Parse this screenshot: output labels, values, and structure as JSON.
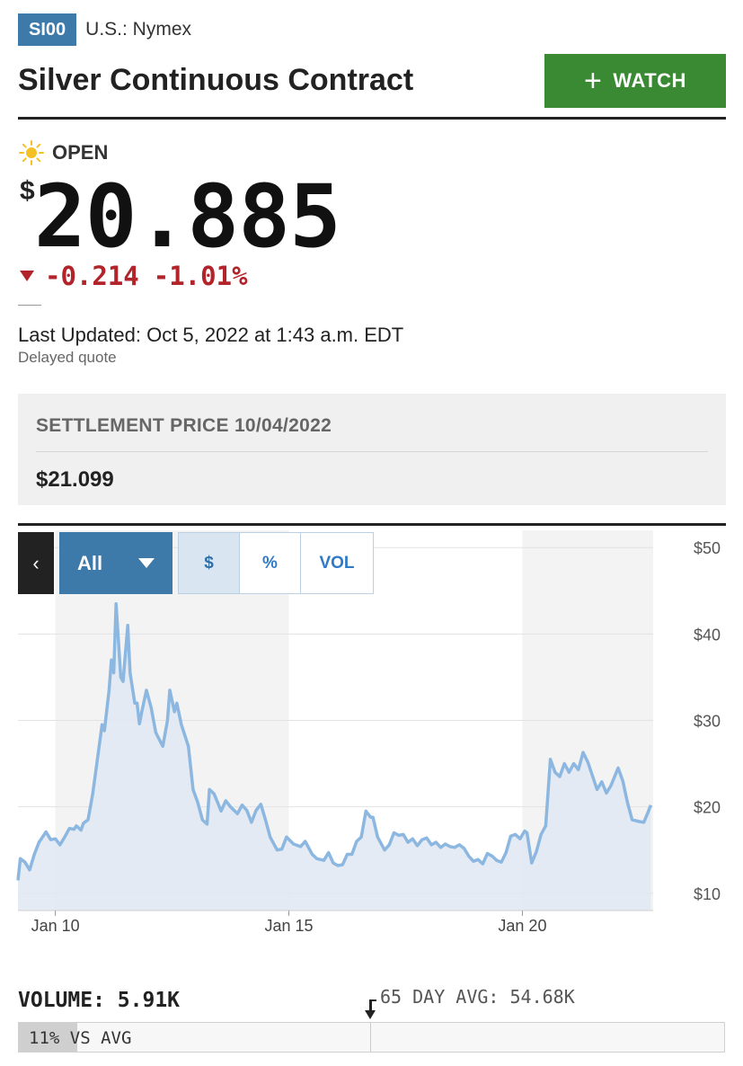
{
  "header": {
    "ticker": "SI00",
    "exchange": "U.S.: Nymex",
    "title": "Silver Continuous Contract",
    "watch_label": "WATCH",
    "watch_icon": "plus-icon"
  },
  "quote": {
    "status_icon": "sun-icon",
    "status": "OPEN",
    "currency": "$",
    "price": "20.885",
    "change": "-0.214",
    "change_pct": "-1.01%",
    "last_updated": "Last Updated: Oct 5, 2022 at 1:43 a.m. EDT",
    "delayed": "Delayed quote",
    "down_color": "#b3242a"
  },
  "settlement": {
    "label": "SETTLEMENT PRICE 10/04/2022",
    "value": "$21.099"
  },
  "chart_controls": {
    "nav_icon": "chevron-left-icon",
    "nav_label": "‹",
    "range": "All",
    "modes": [
      "$",
      "%",
      "VOL"
    ],
    "active_mode": "$"
  },
  "chart_data": {
    "type": "area",
    "series_color": "#8cb7e0",
    "fill_color": "#dfe8f2",
    "ylim": [
      8,
      52
    ],
    "yticks": [
      10,
      20,
      30,
      40,
      50
    ],
    "ytick_labels": [
      "$10",
      "$20",
      "$30",
      "$40",
      "$50"
    ],
    "xlim": [
      9.2,
      22.8
    ],
    "xticks": [
      10,
      15,
      20
    ],
    "xtick_labels": [
      "Jan 10",
      "Jan 15",
      "Jan 20"
    ],
    "shaded_bands": [
      [
        10,
        15
      ],
      [
        20,
        22.8
      ]
    ],
    "points": [
      [
        9.2,
        11.5
      ],
      [
        9.25,
        14.0
      ],
      [
        9.35,
        13.6
      ],
      [
        9.45,
        12.7
      ],
      [
        9.55,
        14.5
      ],
      [
        9.65,
        15.9
      ],
      [
        9.75,
        16.7
      ],
      [
        9.8,
        17.1
      ],
      [
        9.9,
        16.2
      ],
      [
        10.0,
        16.3
      ],
      [
        10.1,
        15.6
      ],
      [
        10.2,
        16.5
      ],
      [
        10.3,
        17.5
      ],
      [
        10.4,
        17.4
      ],
      [
        10.45,
        17.8
      ],
      [
        10.55,
        17.3
      ],
      [
        10.6,
        18.1
      ],
      [
        10.7,
        18.5
      ],
      [
        10.8,
        21.5
      ],
      [
        10.9,
        25.5
      ],
      [
        11.0,
        29.5
      ],
      [
        11.05,
        28.8
      ],
      [
        11.15,
        33.5
      ],
      [
        11.2,
        37.0
      ],
      [
        11.25,
        35.5
      ],
      [
        11.3,
        43.5
      ],
      [
        11.4,
        35.0
      ],
      [
        11.45,
        34.5
      ],
      [
        11.55,
        41.0
      ],
      [
        11.6,
        35.5
      ],
      [
        11.7,
        32.0
      ],
      [
        11.75,
        32.0
      ],
      [
        11.8,
        29.6
      ],
      [
        11.85,
        31.0
      ],
      [
        11.95,
        33.5
      ],
      [
        12.05,
        31.5
      ],
      [
        12.15,
        28.6
      ],
      [
        12.3,
        27.0
      ],
      [
        12.4,
        30.0
      ],
      [
        12.45,
        33.5
      ],
      [
        12.55,
        31.0
      ],
      [
        12.6,
        32.0
      ],
      [
        12.7,
        29.5
      ],
      [
        12.85,
        27.0
      ],
      [
        12.95,
        22.0
      ],
      [
        13.05,
        20.5
      ],
      [
        13.15,
        18.5
      ],
      [
        13.25,
        18.0
      ],
      [
        13.3,
        22.0
      ],
      [
        13.4,
        21.5
      ],
      [
        13.55,
        19.5
      ],
      [
        13.65,
        20.7
      ],
      [
        13.75,
        20.0
      ],
      [
        13.9,
        19.2
      ],
      [
        14.0,
        20.2
      ],
      [
        14.1,
        19.6
      ],
      [
        14.2,
        18.2
      ],
      [
        14.3,
        19.6
      ],
      [
        14.4,
        20.3
      ],
      [
        14.5,
        18.5
      ],
      [
        14.6,
        16.5
      ],
      [
        14.75,
        15.0
      ],
      [
        14.85,
        15.1
      ],
      [
        14.95,
        16.5
      ],
      [
        15.1,
        15.7
      ],
      [
        15.25,
        15.4
      ],
      [
        15.35,
        16.0
      ],
      [
        15.5,
        14.5
      ],
      [
        15.6,
        14.0
      ],
      [
        15.75,
        13.8
      ],
      [
        15.85,
        14.7
      ],
      [
        15.95,
        13.5
      ],
      [
        16.05,
        13.2
      ],
      [
        16.15,
        13.3
      ],
      [
        16.25,
        14.5
      ],
      [
        16.35,
        14.5
      ],
      [
        16.45,
        16.0
      ],
      [
        16.55,
        16.5
      ],
      [
        16.65,
        19.5
      ],
      [
        16.75,
        18.8
      ],
      [
        16.8,
        18.8
      ],
      [
        16.9,
        16.5
      ],
      [
        17.05,
        15.0
      ],
      [
        17.15,
        15.6
      ],
      [
        17.25,
        17.0
      ],
      [
        17.35,
        16.7
      ],
      [
        17.45,
        16.8
      ],
      [
        17.55,
        15.9
      ],
      [
        17.65,
        16.3
      ],
      [
        17.75,
        15.5
      ],
      [
        17.85,
        16.2
      ],
      [
        17.95,
        16.4
      ],
      [
        18.05,
        15.6
      ],
      [
        18.15,
        15.9
      ],
      [
        18.25,
        15.3
      ],
      [
        18.35,
        15.7
      ],
      [
        18.45,
        15.4
      ],
      [
        18.55,
        15.3
      ],
      [
        18.65,
        15.6
      ],
      [
        18.75,
        15.2
      ],
      [
        18.85,
        14.3
      ],
      [
        18.95,
        13.7
      ],
      [
        19.05,
        13.9
      ],
      [
        19.15,
        13.4
      ],
      [
        19.25,
        14.6
      ],
      [
        19.35,
        14.3
      ],
      [
        19.45,
        13.8
      ],
      [
        19.55,
        13.6
      ],
      [
        19.65,
        14.7
      ],
      [
        19.75,
        16.6
      ],
      [
        19.85,
        16.8
      ],
      [
        19.95,
        16.3
      ],
      [
        20.05,
        17.2
      ],
      [
        20.1,
        17.0
      ],
      [
        20.2,
        13.5
      ],
      [
        20.3,
        14.8
      ],
      [
        20.4,
        16.8
      ],
      [
        20.5,
        17.8
      ],
      [
        20.6,
        25.5
      ],
      [
        20.7,
        24.0
      ],
      [
        20.8,
        23.5
      ],
      [
        20.9,
        25.0
      ],
      [
        21.0,
        24.0
      ],
      [
        21.1,
        25.0
      ],
      [
        21.2,
        24.3
      ],
      [
        21.3,
        26.3
      ],
      [
        21.4,
        25.2
      ],
      [
        21.5,
        23.6
      ],
      [
        21.6,
        22.0
      ],
      [
        21.7,
        22.9
      ],
      [
        21.8,
        21.6
      ],
      [
        21.9,
        22.5
      ],
      [
        22.05,
        24.5
      ],
      [
        22.15,
        23.0
      ],
      [
        22.25,
        20.5
      ],
      [
        22.35,
        18.5
      ],
      [
        22.5,
        18.3
      ],
      [
        22.6,
        18.2
      ],
      [
        22.7,
        19.5
      ],
      [
        22.75,
        20.2
      ]
    ]
  },
  "volume": {
    "label": "VOLUME: 5.91K",
    "avg_label": "65 DAY AVG: 54.68K",
    "vs_avg_pct": "11%",
    "vs_avg_label": " VS AVG",
    "vs_avg_fraction": 0.11
  }
}
